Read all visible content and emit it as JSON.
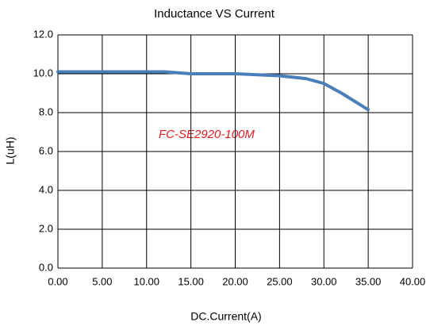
{
  "chart_data": {
    "type": "line",
    "title": "Inductance VS Current",
    "xlabel": "DC.Current(A)",
    "ylabel": "L(uH)",
    "annotation": "FC-SE2920-100M",
    "x": [
      0,
      5,
      10,
      12,
      15,
      20,
      25,
      28,
      30,
      32,
      35
    ],
    "series": [
      {
        "name": "FC-SE2920-100M",
        "color": "#4a7ebb",
        "values": [
          10.1,
          10.1,
          10.1,
          10.1,
          10.0,
          10.0,
          9.9,
          9.75,
          9.5,
          9.0,
          8.15
        ]
      }
    ],
    "xlim": [
      0,
      40
    ],
    "ylim": [
      0,
      12
    ],
    "xticks": [
      {
        "value": 0,
        "label": "0.00"
      },
      {
        "value": 5,
        "label": "5.00"
      },
      {
        "value": 10,
        "label": "10.00"
      },
      {
        "value": 15,
        "label": "15.00"
      },
      {
        "value": 20,
        "label": "20.00"
      },
      {
        "value": 25,
        "label": "25.00"
      },
      {
        "value": 30,
        "label": "30.00"
      },
      {
        "value": 35,
        "label": "35.00"
      },
      {
        "value": 40,
        "label": "40.00"
      }
    ],
    "yticks": [
      {
        "value": 0,
        "label": "0.0"
      },
      {
        "value": 2,
        "label": "2.0"
      },
      {
        "value": 4,
        "label": "4.0"
      },
      {
        "value": 6,
        "label": "6.0"
      },
      {
        "value": 8,
        "label": "8.0"
      },
      {
        "value": 10,
        "label": "10.0"
      },
      {
        "value": 12,
        "label": "12.0"
      }
    ],
    "grid": true
  }
}
